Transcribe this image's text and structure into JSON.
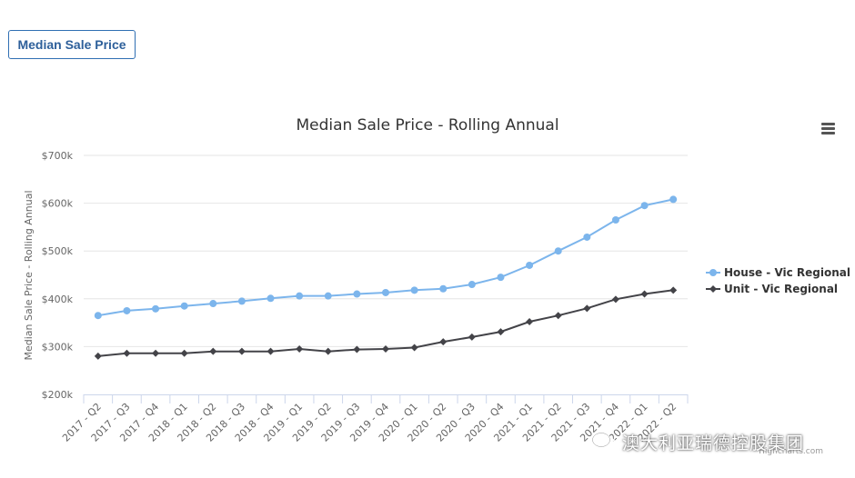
{
  "tab": {
    "label": "Median Sale Price"
  },
  "credits": "Highcharts.com",
  "watermark": {
    "text": "澳大利亚瑞德控股集团"
  },
  "icons": {
    "menu": "hamburger-menu-icon",
    "watermark": "wechat-icon"
  },
  "chart_data": {
    "type": "line",
    "title": "Median Sale Price - Rolling Annual",
    "xlabel": "",
    "ylabel": "Median Sale Price - Rolling Annual",
    "ylim": [
      200000,
      700000
    ],
    "yticks": [
      200000,
      300000,
      400000,
      500000,
      600000,
      700000
    ],
    "ytick_labels": [
      "$200k",
      "$300k",
      "$400k",
      "$500k",
      "$600k",
      "$700k"
    ],
    "grid": true,
    "legend_position": "right",
    "categories": [
      "2017 - Q2",
      "2017 - Q3",
      "2017 - Q4",
      "2018 - Q1",
      "2018 - Q2",
      "2018 - Q3",
      "2018 - Q4",
      "2019 - Q1",
      "2019 - Q2",
      "2019 - Q3",
      "2019 - Q4",
      "2020 - Q1",
      "2020 - Q2",
      "2020 - Q3",
      "2020 - Q4",
      "2021 - Q1",
      "2021 - Q2",
      "2021 - Q3",
      "2021 - Q4",
      "2022 - Q1",
      "2022 - Q2"
    ],
    "series": [
      {
        "name": "House - Vic Regional",
        "color": "#7cb5ec",
        "marker": "circle",
        "values": [
          365000,
          375000,
          379000,
          385000,
          390000,
          395000,
          401000,
          406000,
          406000,
          410000,
          413000,
          418000,
          421000,
          430000,
          445000,
          470000,
          500000,
          529000,
          565000,
          595000,
          608000
        ]
      },
      {
        "name": "Unit - Vic Regional",
        "color": "#434348",
        "marker": "diamond",
        "values": [
          280000,
          286000,
          286000,
          286000,
          290000,
          290000,
          290000,
          295000,
          290000,
          294000,
          295000,
          298000,
          310000,
          320000,
          331000,
          352000,
          365000,
          380000,
          399000,
          410000,
          418000
        ]
      }
    ]
  }
}
